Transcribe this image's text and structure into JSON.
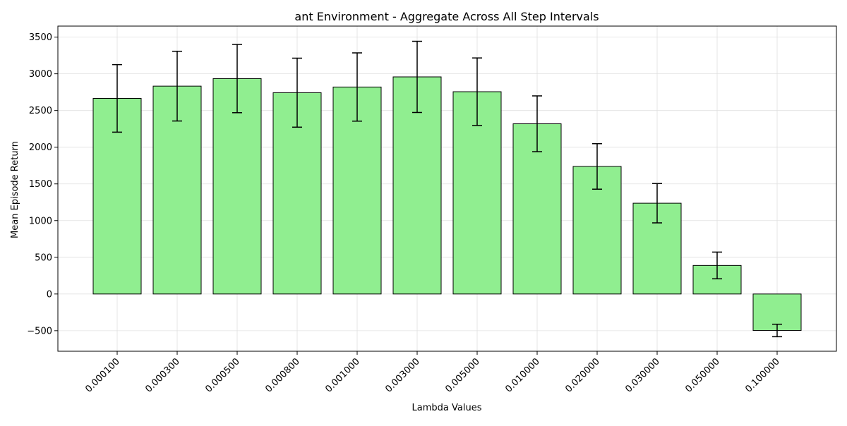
{
  "chart_data": {
    "type": "bar",
    "title": "ant Environment - Aggregate Across All Step Intervals",
    "xlabel": "Lambda Values",
    "ylabel": "Mean Episode Return",
    "categories": [
      "0.000100",
      "0.000300",
      "0.000500",
      "0.000800",
      "0.001000",
      "0.003000",
      "0.005000",
      "0.010000",
      "0.020000",
      "0.030000",
      "0.050000",
      "0.100000"
    ],
    "values": [
      2665,
      2832,
      2935,
      2743,
      2820,
      2958,
      2756,
      2319,
      1738,
      1237,
      389,
      -497
    ],
    "errors": [
      460,
      475,
      465,
      470,
      465,
      485,
      460,
      380,
      310,
      268,
      182,
      85
    ],
    "ylim": [
      -780,
      3650
    ],
    "yticks": [
      -500,
      0,
      500,
      1000,
      1500,
      2000,
      2500,
      3000,
      3500
    ],
    "grid": true,
    "colors": {
      "bar_fill": "#90ee90",
      "bar_edge": "#000000",
      "error_bar": "#000000",
      "grid": "#e0e0e0"
    }
  }
}
